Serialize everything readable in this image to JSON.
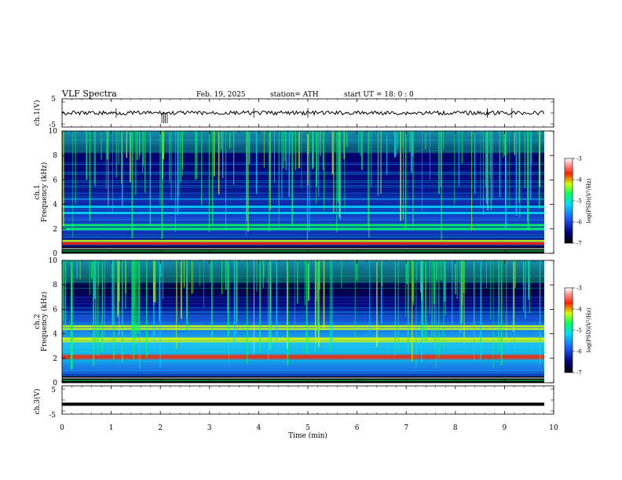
{
  "header": {
    "title": "VLF  Spectra",
    "date": "Feb. 19,  2025",
    "station": "station= ATH",
    "start": "start  UT  =    18: 0   : 0"
  },
  "panels": {
    "ch1_wave": {
      "ylabel": "ch.1(V)",
      "ticks": [
        "5",
        "-5"
      ]
    },
    "ch1_spec": {
      "ylabel_top": "ch.1",
      "ylabel_bottom": "Frequency  (kHz)",
      "ticks": [
        "10",
        "8",
        "6",
        "4",
        "2",
        "0"
      ]
    },
    "ch2_spec": {
      "ylabel_top": "ch.2",
      "ylabel_bottom": "Frequency  (kHz)",
      "ticks": [
        "10",
        "8",
        "6",
        "4",
        "2",
        "0"
      ]
    },
    "ch3_wave": {
      "ylabel": "ch.3(V)",
      "ticks": [
        "5",
        "-5"
      ]
    }
  },
  "xaxis": {
    "label": "Time  (min)",
    "ticks": [
      "0",
      "1",
      "2",
      "3",
      "4",
      "5",
      "6",
      "7",
      "8",
      "9",
      "10"
    ]
  },
  "colorbars": [
    {
      "label": "log(PSD)(V²/Hz)",
      "ticks": [
        "-3",
        "-4",
        "-5",
        "-6",
        "-7"
      ]
    },
    {
      "label": "log(PSD)(V²/Hz)",
      "ticks": [
        "-3",
        "-4",
        "-5",
        "-6",
        "-7"
      ]
    }
  ],
  "colors": {
    "spectrogram_low": "#00007a",
    "spectrogram_mid": "#1e90ff",
    "spectrogram_high": "#00ff7f",
    "band_red": "#ff2000",
    "wave": "#000000"
  },
  "chart_data": {
    "type": "heatmap",
    "title": "VLF  Spectra",
    "xlabel": "Time  (min)",
    "ylabel": "Frequency  (kHz)",
    "xlim": [
      0,
      10
    ],
    "ylim_spectra": [
      0,
      10
    ],
    "ylim_waveforms": [
      -5,
      5
    ],
    "data_extent_min": [
      0,
      9.8
    ],
    "colorbar_range": [
      -7,
      -3
    ],
    "ch1_bands_khz": [
      {
        "freq": 0.8,
        "level": -4.0
      },
      {
        "freq": 1.0,
        "level": -4.2
      },
      {
        "freq": 2.0,
        "level": -5.0
      },
      {
        "freq": 2.3,
        "level": -5.0
      },
      {
        "freq": 3.3,
        "level": -5.5
      },
      {
        "freq": 3.8,
        "level": -5.5
      }
    ],
    "ch2_bands_khz": [
      {
        "freq": 2.0,
        "level": -4.0
      },
      {
        "freq": 2.2,
        "level": -4.0
      },
      {
        "freq": 3.4,
        "level": -4.2
      },
      {
        "freq": 3.6,
        "level": -4.2
      },
      {
        "freq": 4.4,
        "level": -4.5
      },
      {
        "freq": 4.6,
        "level": -4.5
      }
    ],
    "ch1_waveform_level_v": 0,
    "ch3_waveform_level_v": -1.5
  }
}
